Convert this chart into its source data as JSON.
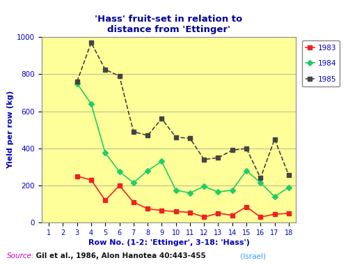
{
  "title": "'Hass' fruit-set in relation to\ndistance from 'Ettinger'",
  "xlabel": "Row No. (1-2: 'Ettinger', 3-18: 'Hass')",
  "ylabel": "Yield per row (kg)",
  "background_color": "#FFFF99",
  "outer_background": "#FFFFFF",
  "x_ticks": [
    1,
    2,
    3,
    4,
    5,
    6,
    7,
    8,
    9,
    10,
    11,
    12,
    13,
    14,
    15,
    16,
    17,
    18
  ],
  "ylim": [
    0,
    1000
  ],
  "yticks": [
    0,
    200,
    400,
    600,
    800,
    1000
  ],
  "series": {
    "1983": {
      "x": [
        3,
        4,
        5,
        6,
        7,
        8,
        9,
        10,
        11,
        12,
        13,
        14,
        15,
        16,
        17,
        18
      ],
      "y": [
        250,
        230,
        120,
        200,
        110,
        75,
        65,
        60,
        55,
        30,
        50,
        40,
        85,
        30,
        45,
        50
      ],
      "color": "#EE2222",
      "marker": "s",
      "linewidth": 1.2,
      "markersize": 4
    },
    "1984": {
      "x": [
        3,
        4,
        5,
        6,
        7,
        8,
        9,
        10,
        11,
        12,
        13,
        14,
        15,
        16,
        17,
        18
      ],
      "y": [
        750,
        640,
        375,
        275,
        215,
        280,
        330,
        175,
        160,
        195,
        165,
        175,
        280,
        215,
        140,
        190
      ],
      "color": "#22CC66",
      "marker": "D",
      "linewidth": 1.2,
      "markersize": 4
    },
    "1985": {
      "x": [
        3,
        4,
        5,
        6,
        7,
        8,
        9,
        10,
        11,
        12,
        13,
        14,
        15,
        16,
        17,
        18
      ],
      "y": [
        760,
        970,
        825,
        790,
        490,
        470,
        560,
        460,
        455,
        340,
        350,
        390,
        400,
        240,
        450,
        255
      ],
      "color": "#444444",
      "marker": "s",
      "linewidth": 1.2,
      "markersize": 4
    }
  },
  "legend_labels": [
    "1983",
    "1984",
    "1985"
  ],
  "source_italic": "Source:",
  "source_bold": " Gil et al., 1986, Alon Hanotea 40:443-455",
  "source_blue": " (Israel)",
  "title_color": "#000099",
  "axis_label_color": "#0000BB",
  "tick_label_color": "#0000BB",
  "source_color_italic": "#CC00CC",
  "source_color_bold": "#111111",
  "source_color_blue": "#3399FF"
}
